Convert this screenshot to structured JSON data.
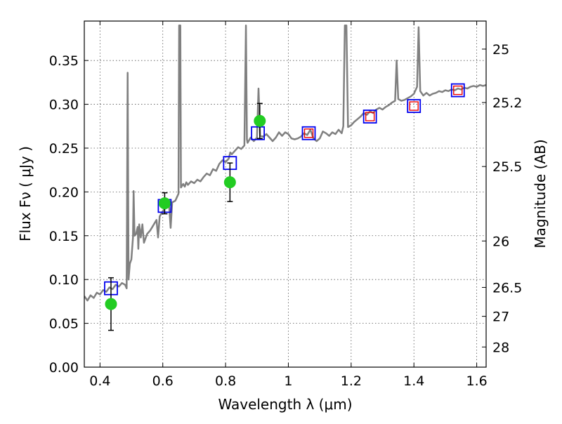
{
  "chart_data": {
    "type": "scatter",
    "xlabel": "Wavelength  λ (μm)",
    "ylabel": "Flux  Fν  ( μJy )",
    "y2label": "Magnitude (AB)",
    "xlim": [
      0.35,
      1.63
    ],
    "ylim": [
      0.0,
      0.395
    ],
    "grid": true,
    "x_ticks": [
      0.4,
      0.6,
      0.8,
      1.0,
      1.2,
      1.4,
      1.6
    ],
    "x_tick_labels": [
      "0.4",
      "0.6",
      "0.8",
      "1",
      "1.2",
      "1.4",
      "1.6"
    ],
    "y_ticks": [
      0.0,
      0.05,
      0.1,
      0.15,
      0.2,
      0.25,
      0.3,
      0.35
    ],
    "y_tick_labels": [
      "0.00",
      "0.05",
      "0.10",
      "0.15",
      "0.20",
      "0.25",
      "0.30",
      "0.35"
    ],
    "y2_ticks": [
      {
        "label": "25",
        "flux": 0.363
      },
      {
        "label": "25.2",
        "flux": 0.302
      },
      {
        "label": "25.5",
        "flux": 0.229
      },
      {
        "label": "26",
        "flux": 0.144
      },
      {
        "label": "26.5",
        "flux": 0.091
      },
      {
        "label": "27",
        "flux": 0.058
      },
      {
        "label": "28",
        "flux": 0.023
      }
    ],
    "colors": {
      "spectrum": "#808080",
      "observed": "#22cc22",
      "model_box": "#0000ee",
      "model_inner": "#ee0000",
      "errorbar": "#000000",
      "grid": "#555555"
    },
    "series": [
      {
        "values": [
          [
            0.35,
            0.081
          ],
          [
            0.36,
            0.076
          ],
          [
            0.37,
            0.082
          ],
          [
            0.38,
            0.079
          ],
          [
            0.39,
            0.085
          ],
          [
            0.4,
            0.083
          ],
          [
            0.41,
            0.088
          ],
          [
            0.42,
            0.086
          ],
          [
            0.43,
            0.091
          ],
          [
            0.44,
            0.089
          ],
          [
            0.45,
            0.094
          ],
          [
            0.46,
            0.092
          ],
          [
            0.47,
            0.096
          ],
          [
            0.48,
            0.094
          ],
          [
            0.485,
            0.09
          ],
          [
            0.488,
            0.336
          ],
          [
            0.491,
            0.1
          ],
          [
            0.495,
            0.118
          ],
          [
            0.5,
            0.123
          ],
          [
            0.505,
            0.148
          ],
          [
            0.507,
            0.201
          ],
          [
            0.51,
            0.15
          ],
          [
            0.515,
            0.152
          ],
          [
            0.52,
            0.16
          ],
          [
            0.522,
            0.135
          ],
          [
            0.525,
            0.163
          ],
          [
            0.53,
            0.148
          ],
          [
            0.535,
            0.163
          ],
          [
            0.54,
            0.142
          ],
          [
            0.55,
            0.152
          ],
          [
            0.56,
            0.156
          ],
          [
            0.57,
            0.162
          ],
          [
            0.58,
            0.168
          ],
          [
            0.585,
            0.148
          ],
          [
            0.59,
            0.172
          ],
          [
            0.6,
            0.178
          ],
          [
            0.61,
            0.182
          ],
          [
            0.62,
            0.185
          ],
          [
            0.625,
            0.159
          ],
          [
            0.63,
            0.188
          ],
          [
            0.64,
            0.19
          ],
          [
            0.65,
            0.198
          ],
          [
            0.652,
            0.39
          ],
          [
            0.654,
            0.39
          ],
          [
            0.656,
            0.39
          ],
          [
            0.658,
            0.205
          ],
          [
            0.665,
            0.209
          ],
          [
            0.67,
            0.206
          ],
          [
            0.675,
            0.211
          ],
          [
            0.68,
            0.208
          ],
          [
            0.69,
            0.212
          ],
          [
            0.7,
            0.21
          ],
          [
            0.71,
            0.214
          ],
          [
            0.72,
            0.212
          ],
          [
            0.73,
            0.217
          ],
          [
            0.74,
            0.221
          ],
          [
            0.75,
            0.219
          ],
          [
            0.76,
            0.226
          ],
          [
            0.77,
            0.224
          ],
          [
            0.78,
            0.232
          ],
          [
            0.79,
            0.236
          ],
          [
            0.8,
            0.234
          ],
          [
            0.81,
            0.238
          ],
          [
            0.815,
            0.245
          ],
          [
            0.82,
            0.243
          ],
          [
            0.83,
            0.247
          ],
          [
            0.84,
            0.251
          ],
          [
            0.85,
            0.249
          ],
          [
            0.86,
            0.253
          ],
          [
            0.865,
            0.39
          ],
          [
            0.868,
            0.26
          ],
          [
            0.87,
            0.256
          ],
          [
            0.88,
            0.262
          ],
          [
            0.89,
            0.258
          ],
          [
            0.9,
            0.262
          ],
          [
            0.905,
            0.318
          ],
          [
            0.91,
            0.264
          ],
          [
            0.92,
            0.263
          ],
          [
            0.93,
            0.266
          ],
          [
            0.94,
            0.262
          ],
          [
            0.95,
            0.258
          ],
          [
            0.96,
            0.262
          ],
          [
            0.97,
            0.268
          ],
          [
            0.98,
            0.264
          ],
          [
            0.99,
            0.268
          ],
          [
            1.0,
            0.266
          ],
          [
            1.01,
            0.261
          ],
          [
            1.02,
            0.26
          ],
          [
            1.03,
            0.261
          ],
          [
            1.04,
            0.263
          ],
          [
            1.05,
            0.267
          ],
          [
            1.06,
            0.265
          ],
          [
            1.07,
            0.271
          ],
          [
            1.08,
            0.261
          ],
          [
            1.09,
            0.258
          ],
          [
            1.1,
            0.261
          ],
          [
            1.11,
            0.269
          ],
          [
            1.12,
            0.267
          ],
          [
            1.13,
            0.264
          ],
          [
            1.14,
            0.268
          ],
          [
            1.15,
            0.266
          ],
          [
            1.16,
            0.271
          ],
          [
            1.17,
            0.267
          ],
          [
            1.175,
            0.275
          ],
          [
            1.18,
            0.39
          ],
          [
            1.185,
            0.39
          ],
          [
            1.19,
            0.274
          ],
          [
            1.2,
            0.276
          ],
          [
            1.21,
            0.28
          ],
          [
            1.22,
            0.283
          ],
          [
            1.23,
            0.286
          ],
          [
            1.24,
            0.29
          ],
          [
            1.25,
            0.288
          ],
          [
            1.26,
            0.292
          ],
          [
            1.27,
            0.29
          ],
          [
            1.28,
            0.294
          ],
          [
            1.29,
            0.296
          ],
          [
            1.3,
            0.294
          ],
          [
            1.31,
            0.297
          ],
          [
            1.32,
            0.299
          ],
          [
            1.33,
            0.302
          ],
          [
            1.34,
            0.304
          ],
          [
            1.345,
            0.35
          ],
          [
            1.35,
            0.306
          ],
          [
            1.36,
            0.304
          ],
          [
            1.37,
            0.305
          ],
          [
            1.38,
            0.307
          ],
          [
            1.39,
            0.309
          ],
          [
            1.4,
            0.312
          ],
          [
            1.41,
            0.32
          ],
          [
            1.415,
            0.388
          ],
          [
            1.42,
            0.315
          ],
          [
            1.43,
            0.31
          ],
          [
            1.44,
            0.313
          ],
          [
            1.45,
            0.31
          ],
          [
            1.46,
            0.312
          ],
          [
            1.47,
            0.313
          ],
          [
            1.48,
            0.315
          ],
          [
            1.49,
            0.314
          ],
          [
            1.5,
            0.316
          ],
          [
            1.51,
            0.315
          ],
          [
            1.52,
            0.317
          ],
          [
            1.53,
            0.316
          ],
          [
            1.54,
            0.318
          ],
          [
            1.55,
            0.317
          ],
          [
            1.56,
            0.319
          ],
          [
            1.57,
            0.318
          ],
          [
            1.58,
            0.32
          ],
          [
            1.59,
            0.321
          ],
          [
            1.6,
            0.32
          ],
          [
            1.61,
            0.322
          ],
          [
            1.62,
            0.321
          ],
          [
            1.63,
            0.322
          ]
        ]
      },
      {
        "values": [
          {
            "x": 0.435,
            "y": 0.072,
            "err": 0.03
          },
          {
            "x": 0.606,
            "y": 0.187,
            "err": 0.012
          },
          {
            "x": 0.814,
            "y": 0.211,
            "err": 0.022
          },
          {
            "x": 0.909,
            "y": 0.281,
            "err": 0.02
          }
        ]
      },
      {
        "values": [
          {
            "x": 0.435,
            "y": 0.09
          },
          {
            "x": 0.606,
            "y": 0.184
          },
          {
            "x": 0.814,
            "y": 0.233
          },
          {
            "x": 0.903,
            "y": 0.267
          },
          {
            "x": 1.065,
            "y": 0.267
          },
          {
            "x": 1.26,
            "y": 0.286
          },
          {
            "x": 1.4,
            "y": 0.298
          },
          {
            "x": 1.54,
            "y": 0.316
          }
        ]
      },
      {
        "values": [
          {
            "x": 1.065,
            "y": 0.267
          },
          {
            "x": 1.26,
            "y": 0.286
          },
          {
            "x": 1.4,
            "y": 0.298
          },
          {
            "x": 1.54,
            "y": 0.316
          }
        ]
      }
    ]
  }
}
